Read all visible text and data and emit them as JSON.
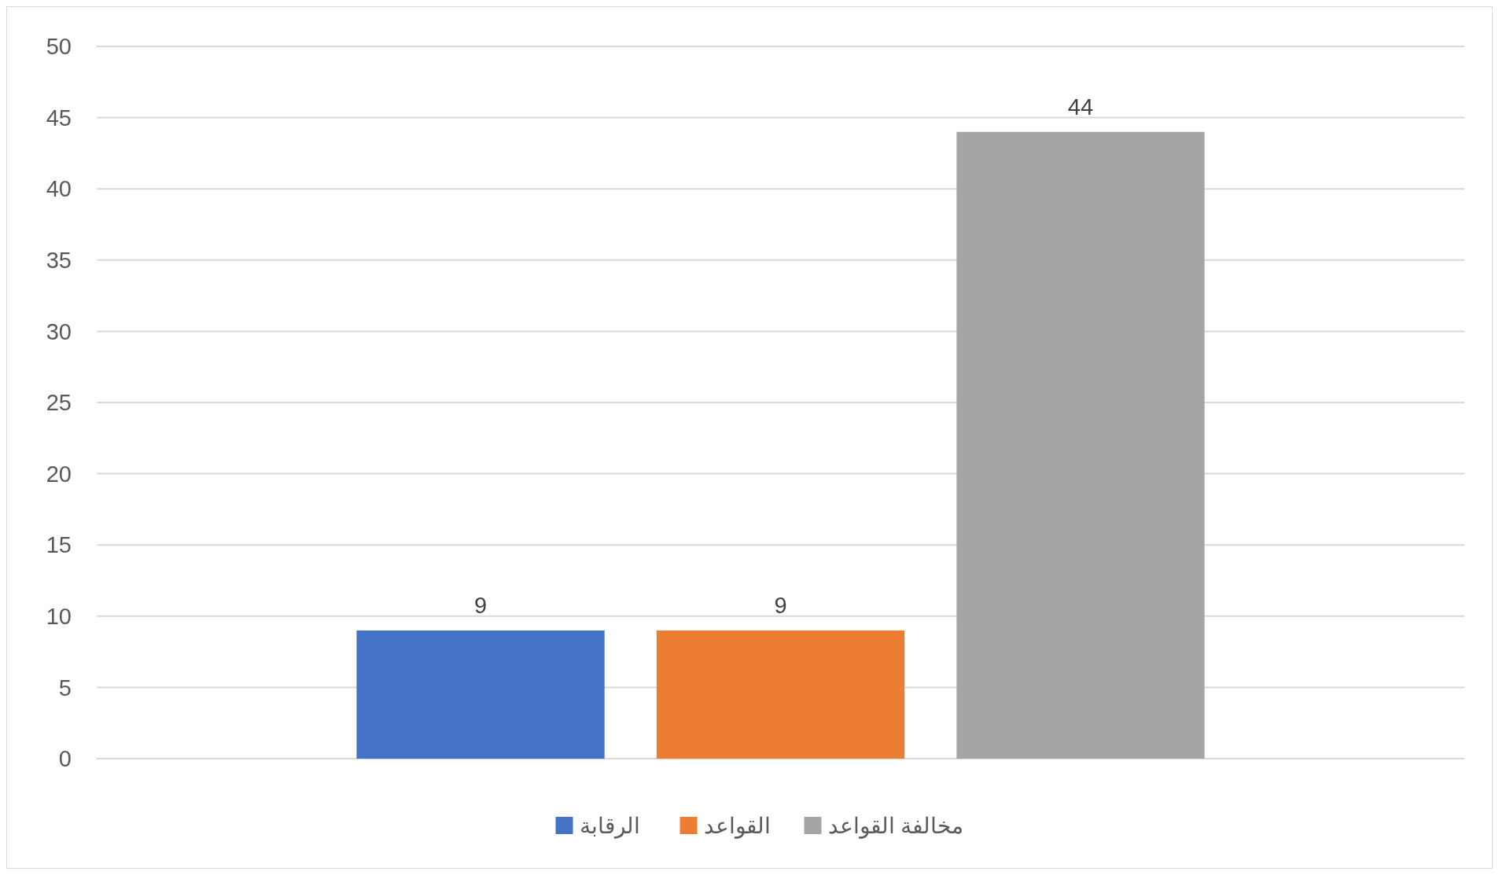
{
  "chart_data": {
    "type": "bar",
    "categories": [
      null
    ],
    "series": [
      {
        "name": "الرقابة",
        "color": "#4472c4",
        "values": [
          9
        ]
      },
      {
        "name": "القواعد",
        "color": "#ed7d31",
        "values": [
          9
        ]
      },
      {
        "name": "مخالفة القواعد",
        "color": "#a5a5a5",
        "values": [
          44
        ]
      }
    ],
    "ylim": [
      0,
      50
    ],
    "yticks": [
      0,
      5,
      10,
      15,
      20,
      25,
      30,
      35,
      40,
      45,
      50
    ],
    "grid": "y",
    "legend": "bottom",
    "data_labels": true
  }
}
